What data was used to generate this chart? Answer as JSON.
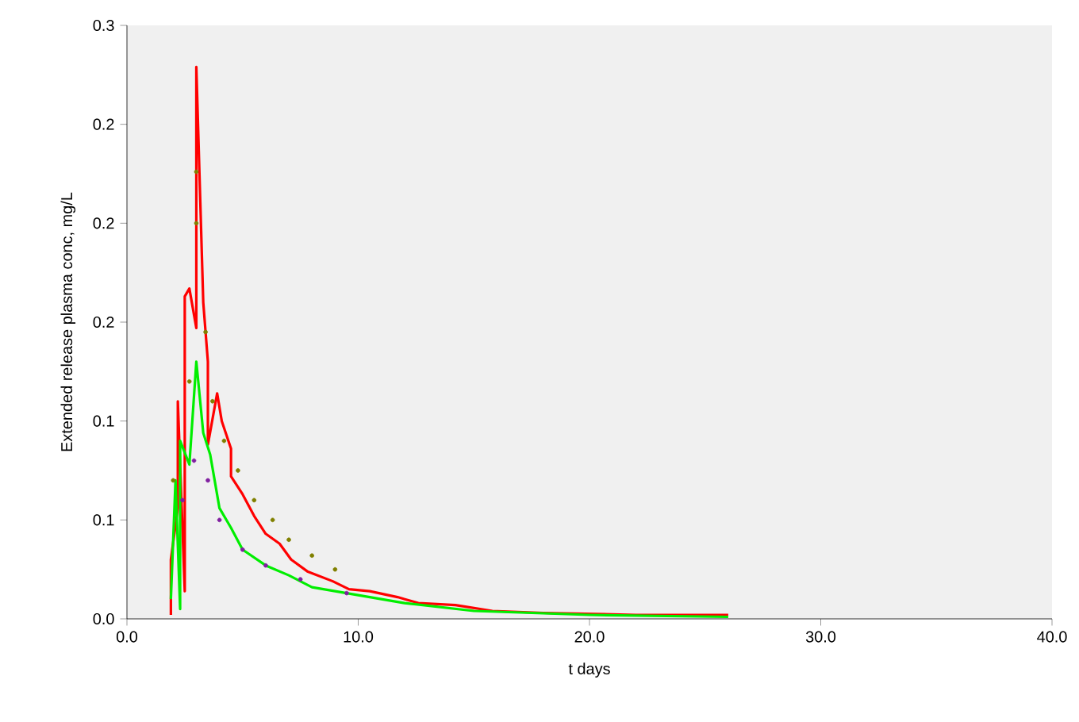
{
  "chart_data": {
    "type": "line",
    "xlabel": "t days",
    "ylabel": "Extended release plasma conc, mg/L",
    "xlim": [
      0,
      40
    ],
    "xticks": [
      {
        "value": 0,
        "label": "0.0"
      },
      {
        "value": 10,
        "label": "10.0"
      },
      {
        "value": 20,
        "label": "20.0"
      },
      {
        "value": 30,
        "label": "30.0"
      },
      {
        "value": 40,
        "label": "40.0"
      }
    ],
    "ylim": [
      0,
      0.3
    ],
    "yticks": [
      {
        "value": 0,
        "label": "0.0"
      },
      {
        "value": 0.05,
        "label": "0.1"
      },
      {
        "value": 0.1,
        "label": "0.1"
      },
      {
        "value": 0.15,
        "label": "0.2"
      },
      {
        "value": 0.2,
        "label": "0.2"
      },
      {
        "value": 0.25,
        "label": "0.2"
      },
      {
        "value": 0.3,
        "label": "0.3"
      }
    ],
    "series": [
      {
        "color": "#ff0000",
        "x": [
          1.9,
          1.9,
          2.2,
          2.2,
          2.5,
          2.5,
          2.7,
          3.0,
          3.0,
          3.3,
          3.5,
          3.5,
          3.9,
          4.1,
          4.5,
          4.5,
          5.0,
          5.5,
          6.0,
          6.6,
          7.1,
          7.8,
          8.9,
          9.6,
          10.5,
          11.7,
          12.6,
          14.2,
          15.8,
          18.0,
          22.0,
          26.0
        ],
        "values": [
          0.002,
          0.03,
          0.056,
          0.11,
          0.014,
          0.163,
          0.167,
          0.147,
          0.279,
          0.16,
          0.13,
          0.088,
          0.114,
          0.1,
          0.086,
          0.072,
          0.063,
          0.052,
          0.043,
          0.038,
          0.03,
          0.024,
          0.019,
          0.015,
          0.014,
          0.011,
          0.008,
          0.007,
          0.004,
          0.003,
          0.002,
          0.002
        ]
      },
      {
        "color": "#00ee00",
        "x": [
          1.9,
          2.1,
          2.3,
          2.3,
          2.7,
          3.0,
          3.3,
          3.6,
          4.0,
          4.5,
          5.0,
          6.0,
          7.0,
          8.0,
          10.0,
          12.0,
          15.0,
          20.0,
          26.0
        ],
        "values": [
          0.01,
          0.07,
          0.005,
          0.09,
          0.078,
          0.13,
          0.094,
          0.083,
          0.056,
          0.046,
          0.035,
          0.027,
          0.022,
          0.016,
          0.012,
          0.008,
          0.004,
          0.002,
          0.001
        ]
      },
      {
        "color": "#808000",
        "type": "scatter",
        "x": [
          2.0,
          2.7,
          3.0,
          3.0,
          3.4,
          3.7,
          4.2,
          4.8,
          5.5,
          6.3,
          7.0,
          8.0,
          9.0
        ],
        "values": [
          0.07,
          0.12,
          0.2,
          0.226,
          0.145,
          0.11,
          0.09,
          0.075,
          0.06,
          0.05,
          0.04,
          0.032,
          0.025
        ]
      },
      {
        "color": "#8020a0",
        "type": "scatter",
        "x": [
          2.4,
          2.9,
          3.5,
          4.0,
          5.0,
          6.0,
          7.5,
          9.5
        ],
        "values": [
          0.06,
          0.08,
          0.07,
          0.05,
          0.035,
          0.027,
          0.02,
          0.013
        ]
      }
    ]
  }
}
